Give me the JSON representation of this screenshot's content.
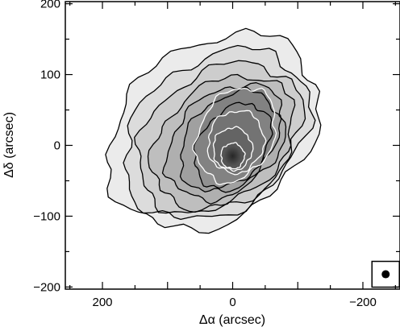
{
  "chart_data": {
    "type": "contour",
    "xlabel": "Δα (arcsec)",
    "ylabel": "Δδ (arcsec)",
    "xlim": [
      257,
      -257
    ],
    "ylim": [
      -203,
      203
    ],
    "x_ticks": [
      {
        "value": 200,
        "label": "200"
      },
      {
        "value": 0,
        "label": "0"
      },
      {
        "value": -200,
        "label": "−200"
      }
    ],
    "y_ticks": [
      {
        "value": 200,
        "label": "200"
      },
      {
        "value": 100,
        "label": "100"
      },
      {
        "value": 0,
        "label": "0"
      },
      {
        "value": -100,
        "label": "−100"
      },
      {
        "value": -200,
        "label": "−200"
      }
    ],
    "grid": false,
    "background": "greyscale intensity map",
    "peak": {
      "x": 0,
      "y": -15
    },
    "black_contours": [
      {
        "level": 1,
        "cx": 30,
        "cy": 20,
        "rx": 172,
        "ry": 125,
        "rot": -30
      },
      {
        "level": 2,
        "cx": 25,
        "cy": 15,
        "rx": 152,
        "ry": 108,
        "rot": -30
      },
      {
        "level": 3,
        "cx": 20,
        "cy": 10,
        "rx": 135,
        "ry": 95,
        "rot": -30
      },
      {
        "level": 4,
        "cx": 15,
        "cy": 5,
        "rx": 118,
        "ry": 82,
        "rot": -32
      },
      {
        "level": 5,
        "cx": 10,
        "cy": 5,
        "rx": 100,
        "ry": 70,
        "rot": -35
      },
      {
        "level": 6,
        "cx": 5,
        "cy": 5,
        "rx": 85,
        "ry": 60,
        "rot": -40
      },
      {
        "level": 7,
        "cx": 0,
        "cy": 0,
        "rx": 68,
        "ry": 48,
        "rot": -45
      }
    ],
    "white_contours": [
      {
        "level": 8,
        "cx": -5,
        "cy": 15,
        "rx": 72,
        "ry": 55,
        "rot": -55
      },
      {
        "level": 9,
        "cx": -5,
        "cy": 5,
        "rx": 45,
        "ry": 42,
        "rot": -55
      },
      {
        "level": 10,
        "cx": 0,
        "cy": -5,
        "rx": 30,
        "ry": 30,
        "rot": -50
      },
      {
        "level": 11,
        "cx": 0,
        "cy": -15,
        "rx": 18,
        "ry": 18,
        "rot": -40
      }
    ],
    "beam": {
      "x": -235,
      "y": -182
    }
  }
}
